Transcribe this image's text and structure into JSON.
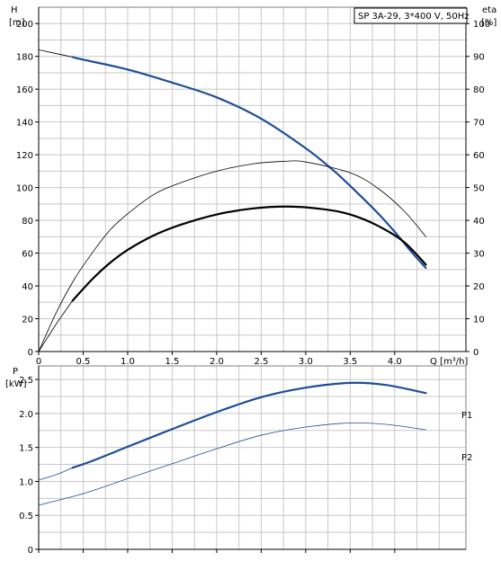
{
  "chart_data": [
    {
      "type": "line",
      "title": "SP 3A-29, 3*400 V, 50Hz",
      "xlabel": "Q [m³/h]",
      "ylabel": "H",
      "ylabel_unit": "[m]",
      "y2label": "eta",
      "y2label_unit": "[%]",
      "xlim": [
        0,
        4.8
      ],
      "ylim": [
        0,
        210
      ],
      "y2lim": [
        0,
        105
      ],
      "grid": true,
      "x_ticks": [
        "0",
        "0.5",
        "1.0",
        "1.5",
        "2.0",
        "2.5",
        "3.0",
        "3.5",
        "4.0"
      ],
      "y_ticks": [
        "0",
        "20",
        "40",
        "60",
        "80",
        "100",
        "120",
        "140",
        "160",
        "180",
        "200"
      ],
      "y2_ticks": [
        "0",
        "10",
        "20",
        "30",
        "40",
        "50",
        "60",
        "70",
        "80",
        "90",
        "100"
      ],
      "series": [
        {
          "id": "h_full",
          "color": "#000000",
          "axis": "y",
          "width": 0.8,
          "x": [
            0,
            0.38
          ],
          "y": [
            184,
            179.6
          ]
        },
        {
          "id": "h_main",
          "color": "#1f4e96",
          "axis": "y",
          "width": 2.2,
          "x": [
            0.38,
            0.5,
            1.0,
            1.5,
            2.0,
            2.5,
            3.0,
            3.3,
            3.5,
            3.8,
            4.0,
            4.2,
            4.35
          ],
          "y": [
            179.6,
            178,
            172,
            164,
            155,
            142,
            124,
            111,
            101,
            85,
            73,
            60,
            51
          ]
        },
        {
          "id": "eta_full",
          "color": "#000000",
          "axis": "y2",
          "width": 0.8,
          "x": [
            0,
            0.2,
            0.4,
            0.6,
            0.8,
            1.0,
            1.3,
            1.6,
            2.0,
            2.4,
            2.75,
            3.0,
            3.5,
            3.8,
            4.1,
            4.35
          ],
          "y": [
            0,
            12,
            22,
            30,
            37,
            42,
            48,
            51.5,
            55,
            57.2,
            58,
            57.8,
            54.5,
            50,
            43,
            35
          ]
        },
        {
          "id": "eta_bold",
          "color": "#000000",
          "axis": "y2",
          "width": 2.2,
          "x": [
            0.38,
            0.6,
            0.8,
            1.0,
            1.3,
            1.6,
            2.0,
            2.4,
            2.8,
            3.2,
            3.5,
            3.8,
            4.1,
            4.35
          ],
          "y": [
            15.5,
            22,
            27,
            31,
            35.5,
            38.7,
            41.8,
            43.6,
            44.2,
            43.4,
            41.8,
            38.5,
            33.5,
            26.5
          ]
        },
        {
          "id": "eta_thin0",
          "color": "#000000",
          "axis": "y2",
          "width": 0.8,
          "x": [
            0,
            0.2,
            0.38
          ],
          "y": [
            0,
            8.5,
            15.5
          ]
        }
      ]
    },
    {
      "type": "line",
      "ylabel": "P",
      "ylabel_unit": "[kW]",
      "xlim": [
        0,
        4.8
      ],
      "ylim": [
        0,
        2.7
      ],
      "grid": true,
      "y_ticks": [
        "0",
        "0.5",
        "1.0",
        "1.5",
        "2.0",
        "2.5"
      ],
      "series": [
        {
          "name": "P1",
          "color": "#1f4e96",
          "width": 2.2,
          "x": [
            0.38,
            0.6,
            1.0,
            1.5,
            2.0,
            2.5,
            3.0,
            3.5,
            3.9,
            4.35
          ],
          "y": [
            1.2,
            1.3,
            1.51,
            1.77,
            2.02,
            2.24,
            2.38,
            2.45,
            2.42,
            2.3
          ]
        },
        {
          "id": "p1_thin",
          "color": "#1f4e96",
          "width": 0.8,
          "x": [
            0,
            0.2,
            0.38
          ],
          "y": [
            1.02,
            1.1,
            1.2
          ]
        },
        {
          "name": "P2",
          "color": "#1f4e96",
          "width": 0.8,
          "x": [
            0,
            0.5,
            1.0,
            1.5,
            2.0,
            2.5,
            3.0,
            3.5,
            3.9,
            4.35
          ],
          "y": [
            0.65,
            0.82,
            1.04,
            1.26,
            1.48,
            1.68,
            1.8,
            1.86,
            1.84,
            1.76
          ]
        }
      ]
    }
  ]
}
